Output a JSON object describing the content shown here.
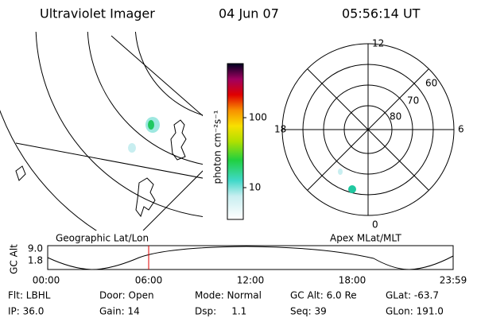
{
  "header": {
    "instrument": "Ultraviolet Imager",
    "date": "04 Jun 07",
    "time": "05:56:14 UT"
  },
  "colorbar": {
    "label": "photon cm⁻²s⁻¹",
    "ticks": [
      "100",
      "10"
    ]
  },
  "polar_plot": {
    "mlt_labels": [
      "12",
      "0",
      "18",
      "6"
    ],
    "mlat_labels": [
      "60",
      "70",
      "80"
    ]
  },
  "timeline": {
    "left_label": "Geographic Lat/Lon",
    "right_label": "Apex MLat/MLT",
    "axis_label": "GC Alt",
    "y_labels": [
      "9.0",
      "1.8"
    ],
    "x_labels": [
      "00:00",
      "06:00",
      "12:00",
      "18:00",
      "23:59"
    ]
  },
  "info": {
    "rows": [
      [
        "Flt: LBHL",
        "Door: Open",
        "Mode: Normal",
        "GC Alt: 6.0 Re",
        "GLat: -63.7"
      ],
      [
        "IP: 36.0",
        "Gain: 14",
        "Dsp:     1.1",
        "Seq: 39",
        "GLon: 191.0"
      ]
    ]
  }
}
